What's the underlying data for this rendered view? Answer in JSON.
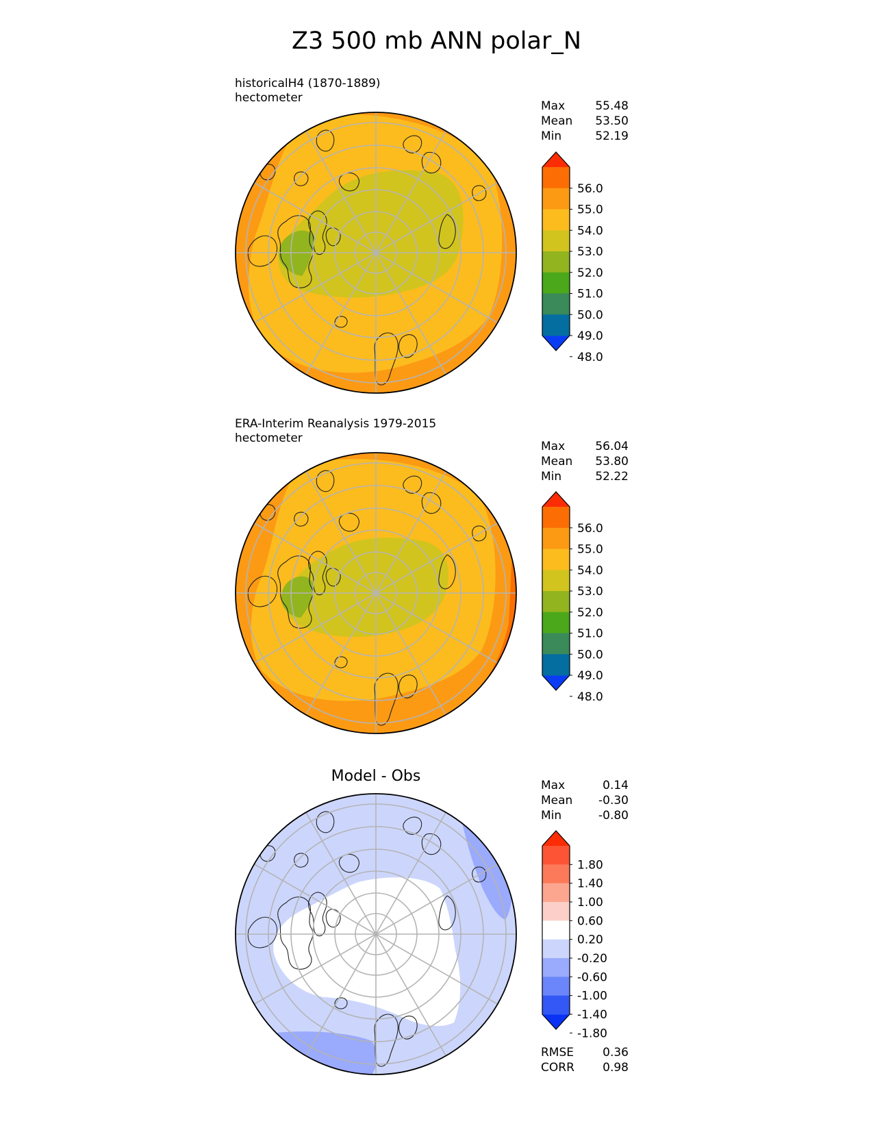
{
  "title": "Z3 500 mb ANN polar_N",
  "colors": {
    "abs_cmap": [
      "#0a3cf5",
      "#046ea0",
      "#3a8a5a",
      "#4aa81a",
      "#92b41e",
      "#d2c41e",
      "#fcbc1e",
      "#fc9a14",
      "#fc6e04",
      "#fc2c04"
    ],
    "diff_cmap": [
      "#0a32f4",
      "#3358f5",
      "#6a86fa",
      "#9aaafc",
      "#ccd6fc",
      "#ffffff",
      "#fcd0c8",
      "#fca690",
      "#fc7a5a",
      "#fc5434",
      "#fc2c04"
    ]
  },
  "chart_data": [
    {
      "type": "heatmap",
      "title": "",
      "case": "historicalH4 (1870-1889)",
      "units": "hectometer",
      "stats": {
        "max_label": "Max",
        "max": "55.48",
        "mean_label": "Mean",
        "mean": "53.50",
        "min_label": "Min",
        "min": "52.19"
      },
      "colorbar_ticks": [
        "56.0",
        "55.0",
        "54.0",
        "53.0",
        "52.0",
        "51.0",
        "50.0",
        "49.0",
        "48.0"
      ]
    },
    {
      "type": "heatmap",
      "title": "",
      "case": "ERA-Interim Reanalysis 1979-2015",
      "units": "hectometer",
      "stats": {
        "max_label": "Max",
        "max": "56.04",
        "mean_label": "Mean",
        "mean": "53.80",
        "min_label": "Min",
        "min": "52.22"
      },
      "colorbar_ticks": [
        "56.0",
        "55.0",
        "54.0",
        "53.0",
        "52.0",
        "51.0",
        "50.0",
        "49.0",
        "48.0"
      ]
    },
    {
      "type": "heatmap",
      "title": "Model - Obs",
      "stats": {
        "max_label": "Max",
        "max": "0.14",
        "mean_label": "Mean",
        "mean": "-0.30",
        "min_label": "Min",
        "min": "-0.80"
      },
      "colorbar_ticks": [
        "1.80",
        "1.40",
        "1.00",
        "0.60",
        "0.20",
        "-0.20",
        "-0.60",
        "-1.00",
        "-1.40",
        "-1.80"
      ],
      "metrics": {
        "rmse_label": "RMSE",
        "rmse": "0.36",
        "corr_label": "CORR",
        "corr": "0.98"
      }
    }
  ]
}
